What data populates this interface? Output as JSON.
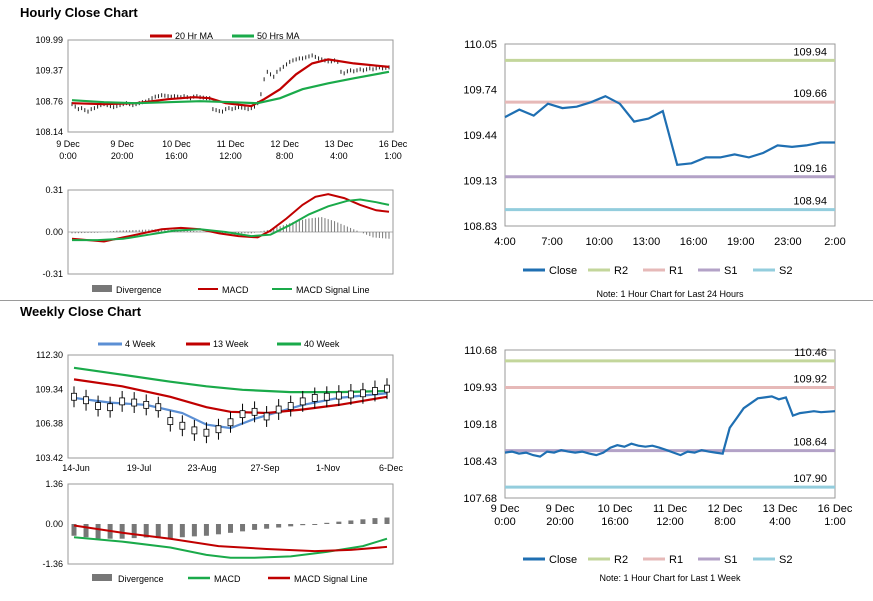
{
  "sections": {
    "hourly_title": "Hourly Close Chart",
    "weekly_title": "Weekly Close Chart"
  },
  "colors": {
    "ma20": "#c00000",
    "ma50": "#1aaa4a",
    "week4": "#5b8fd4",
    "week13": "#c00000",
    "week40": "#1aaa4a",
    "close": "#1f6fb2",
    "r2": "#c3d69b",
    "r1": "#e6b9b8",
    "s1": "#b3a2c7",
    "s2": "#93cddd",
    "divergence": "#777777",
    "candle": "#000000"
  },
  "chart_data": [
    {
      "id": "hourly_price",
      "type": "line",
      "title": "",
      "ylim": [
        108.14,
        109.99
      ],
      "yticks": [
        "109.99",
        "109.37",
        "108.76",
        "108.14"
      ],
      "xticks": [
        [
          "9 Dec",
          "0:00"
        ],
        [
          "9 Dec",
          "20:00"
        ],
        [
          "10 Dec",
          "16:00"
        ],
        [
          "11 Dec",
          "12:00"
        ],
        [
          "12 Dec",
          "8:00"
        ],
        [
          "13 Dec",
          "4:00"
        ],
        [
          "16 Dec",
          "1:00"
        ]
      ],
      "legend": [
        "20 Hr MA",
        "50 Hrs MA"
      ],
      "n": 100,
      "close": [
        108.7,
        108.65,
        108.6,
        108.62,
        108.58,
        108.55,
        108.6,
        108.62,
        108.65,
        108.68,
        108.7,
        108.68,
        108.66,
        108.64,
        108.66,
        108.68,
        108.7,
        108.72,
        108.7,
        108.68,
        108.7,
        108.72,
        108.74,
        108.75,
        108.78,
        108.82,
        108.85,
        108.86,
        108.88,
        108.87,
        108.86,
        108.85,
        108.86,
        108.85,
        108.84,
        108.86,
        108.84,
        108.82,
        108.85,
        108.86,
        108.84,
        108.83,
        108.82,
        108.82,
        108.6,
        108.58,
        108.56,
        108.55,
        108.6,
        108.62,
        108.6,
        108.62,
        108.64,
        108.63,
        108.62,
        108.6,
        108.62,
        108.65,
        108.72,
        108.9,
        109.2,
        109.35,
        109.3,
        109.25,
        109.35,
        109.4,
        109.45,
        109.5,
        109.55,
        109.58,
        109.6,
        109.62,
        109.62,
        109.64,
        109.66,
        109.68,
        109.65,
        109.62,
        109.6,
        109.58,
        109.56,
        109.56,
        109.58,
        109.55,
        109.35,
        109.32,
        109.36,
        109.38,
        109.36,
        109.38,
        109.4,
        109.38,
        109.4,
        109.42,
        109.4,
        109.42,
        109.44,
        109.42,
        109.43,
        109.44
      ],
      "series": [
        {
          "name": "20 Hr MA",
          "color_key": "ma20",
          "values": [
            [
              0,
              108.72
            ],
            [
              10,
              108.7
            ],
            [
              20,
              108.72
            ],
            [
              30,
              108.8
            ],
            [
              38,
              108.84
            ],
            [
              43,
              108.82
            ],
            [
              48,
              108.72
            ],
            [
              56,
              108.66
            ],
            [
              60,
              108.8
            ],
            [
              65,
              109.0
            ],
            [
              70,
              109.3
            ],
            [
              75,
              109.52
            ],
            [
              80,
              109.6
            ],
            [
              88,
              109.52
            ],
            [
              99,
              109.45
            ]
          ]
        },
        {
          "name": "50 Hrs MA",
          "color_key": "ma50",
          "values": [
            [
              0,
              108.78
            ],
            [
              10,
              108.74
            ],
            [
              20,
              108.72
            ],
            [
              30,
              108.74
            ],
            [
              40,
              108.76
            ],
            [
              50,
              108.74
            ],
            [
              58,
              108.72
            ],
            [
              65,
              108.82
            ],
            [
              72,
              109.0
            ],
            [
              80,
              109.12
            ],
            [
              88,
              109.22
            ],
            [
              99,
              109.35
            ]
          ]
        }
      ]
    },
    {
      "id": "hourly_macd",
      "type": "line",
      "ylim": [
        -0.31,
        0.31
      ],
      "yticks": [
        "0.31",
        "0.00",
        "-0.31"
      ],
      "legend": [
        "Divergence",
        "MACD",
        "MACD Signal Line"
      ],
      "n": 100,
      "series": [
        {
          "name": "MACD",
          "color_key": "ma20",
          "values": [
            [
              0,
              -0.05
            ],
            [
              5,
              -0.06
            ],
            [
              10,
              -0.07
            ],
            [
              16,
              -0.04
            ],
            [
              22,
              -0.01
            ],
            [
              28,
              0.02
            ],
            [
              34,
              0.03
            ],
            [
              40,
              0.02
            ],
            [
              46,
              -0.01
            ],
            [
              52,
              -0.03
            ],
            [
              58,
              -0.04
            ],
            [
              62,
              0.01
            ],
            [
              67,
              0.1
            ],
            [
              72,
              0.2
            ],
            [
              76,
              0.26
            ],
            [
              80,
              0.28
            ],
            [
              85,
              0.25
            ],
            [
              90,
              0.2
            ],
            [
              95,
              0.16
            ],
            [
              99,
              0.15
            ]
          ]
        },
        {
          "name": "MACD Signal Line",
          "color_key": "ma50",
          "values": [
            [
              0,
              -0.06
            ],
            [
              8,
              -0.06
            ],
            [
              16,
              -0.05
            ],
            [
              24,
              -0.02
            ],
            [
              32,
              0.01
            ],
            [
              40,
              0.02
            ],
            [
              48,
              0.0
            ],
            [
              56,
              -0.03
            ],
            [
              62,
              -0.02
            ],
            [
              68,
              0.05
            ],
            [
              74,
              0.13
            ],
            [
              80,
              0.19
            ],
            [
              86,
              0.23
            ],
            [
              90,
              0.24
            ],
            [
              95,
              0.22
            ],
            [
              99,
              0.2
            ]
          ]
        }
      ],
      "divergence": [
        [
          0,
          -0.01
        ],
        [
          8,
          -0.005
        ],
        [
          14,
          0.01
        ],
        [
          20,
          0.015
        ],
        [
          26,
          0.02
        ],
        [
          32,
          0.015
        ],
        [
          40,
          0.005
        ],
        [
          48,
          -0.01
        ],
        [
          56,
          -0.01
        ],
        [
          62,
          0.02
        ],
        [
          66,
          0.05
        ],
        [
          70,
          0.08
        ],
        [
          74,
          0.1
        ],
        [
          78,
          0.11
        ],
        [
          82,
          0.08
        ],
        [
          86,
          0.04
        ],
        [
          90,
          0.0
        ],
        [
          94,
          -0.04
        ],
        [
          99,
          -0.05
        ]
      ]
    },
    {
      "id": "pivot_hourly",
      "type": "line",
      "ylim": [
        108.83,
        110.05
      ],
      "yticks": [
        "110.05",
        "109.74",
        "109.44",
        "109.13",
        "108.83"
      ],
      "xticks": [
        "4:00",
        "7:00",
        "10:00",
        "13:00",
        "16:00",
        "19:00",
        "23:00",
        "2:00"
      ],
      "levels": [
        {
          "name": "R2",
          "value": 109.94,
          "label": "109.94",
          "color_key": "r2"
        },
        {
          "name": "R1",
          "value": 109.66,
          "label": "109.66",
          "color_key": "r1"
        },
        {
          "name": "S1",
          "value": 109.16,
          "label": "109.16",
          "color_key": "s1"
        },
        {
          "name": "S2",
          "value": 108.94,
          "label": "108.94",
          "color_key": "s2"
        }
      ],
      "close": [
        109.56,
        109.61,
        109.57,
        109.65,
        109.62,
        109.63,
        109.66,
        109.7,
        109.65,
        109.53,
        109.55,
        109.6,
        109.24,
        109.25,
        109.29,
        109.29,
        109.31,
        109.29,
        109.32,
        109.37,
        109.36,
        109.37,
        109.39,
        109.39
      ],
      "legend": [
        "Close",
        "R2",
        "R1",
        "S1",
        "S2"
      ],
      "note": "Note: 1 Hour Chart for Last 24 Hours"
    },
    {
      "id": "weekly_price",
      "type": "line",
      "ylim": [
        103.42,
        112.3
      ],
      "yticks": [
        "112.30",
        "109.34",
        "106.38",
        "103.42"
      ],
      "xticks": [
        "14-Jun",
        "19-Jul",
        "23-Aug",
        "27-Sep",
        "1-Nov",
        "6-Dec"
      ],
      "legend": [
        "4 Week",
        "13 Week",
        "40 Week"
      ],
      "n": 27,
      "close": [
        108.7,
        108.4,
        107.9,
        107.8,
        108.3,
        108.2,
        108.0,
        107.8,
        106.6,
        106.2,
        105.8,
        105.6,
        105.9,
        106.5,
        107.2,
        107.4,
        107.0,
        107.6,
        107.9,
        108.3,
        108.6,
        108.7,
        108.8,
        108.9,
        109.0,
        109.2,
        109.4
      ],
      "series": [
        {
          "name": "4 Week",
          "color_key": "week4",
          "values": [
            [
              0,
              108.6
            ],
            [
              3,
              108.2
            ],
            [
              6,
              108.0
            ],
            [
              9,
              107.3
            ],
            [
              11,
              106.3
            ],
            [
              13,
              106.0
            ],
            [
              15,
              106.8
            ],
            [
              17,
              107.4
            ],
            [
              19,
              108.0
            ],
            [
              22,
              108.6
            ],
            [
              26,
              109.0
            ]
          ]
        },
        {
          "name": "13 Week",
          "color_key": "week13",
          "values": [
            [
              0,
              110.2
            ],
            [
              4,
              109.6
            ],
            [
              8,
              108.7
            ],
            [
              11,
              107.8
            ],
            [
              13,
              107.4
            ],
            [
              16,
              107.3
            ],
            [
              19,
              107.6
            ],
            [
              22,
              108.0
            ],
            [
              26,
              108.7
            ]
          ]
        },
        {
          "name": "40 Week",
          "color_key": "week40",
          "values": [
            [
              0,
              111.2
            ],
            [
              4,
              110.6
            ],
            [
              8,
              110.0
            ],
            [
              11,
              109.6
            ],
            [
              14,
              109.3
            ],
            [
              18,
              109.1
            ],
            [
              22,
              109.1
            ],
            [
              26,
              109.2
            ]
          ]
        }
      ]
    },
    {
      "id": "weekly_macd",
      "type": "line",
      "ylim": [
        -1.36,
        1.36
      ],
      "yticks": [
        "1.36",
        "0.00",
        "-1.36"
      ],
      "legend": [
        "Divergence",
        "MACD",
        "MACD Signal Line"
      ],
      "n": 27,
      "series": [
        {
          "name": "MACD",
          "color_key": "week40",
          "values": [
            [
              0,
              -0.45
            ],
            [
              4,
              -0.6
            ],
            [
              8,
              -0.8
            ],
            [
              11,
              -1.05
            ],
            [
              13,
              -1.15
            ],
            [
              15,
              -1.15
            ],
            [
              18,
              -1.1
            ],
            [
              21,
              -0.95
            ],
            [
              24,
              -0.75
            ],
            [
              26,
              -0.5
            ]
          ]
        },
        {
          "name": "MACD Signal Line",
          "color_key": "week13",
          "values": [
            [
              0,
              -0.05
            ],
            [
              4,
              -0.3
            ],
            [
              8,
              -0.5
            ],
            [
              12,
              -0.75
            ],
            [
              16,
              -0.85
            ],
            [
              20,
              -0.92
            ],
            [
              23,
              -0.88
            ],
            [
              26,
              -0.78
            ]
          ]
        }
      ],
      "divergence": [
        -0.4,
        -0.45,
        -0.5,
        -0.5,
        -0.5,
        -0.48,
        -0.46,
        -0.48,
        -0.5,
        -0.45,
        -0.42,
        -0.4,
        -0.35,
        -0.3,
        -0.25,
        -0.2,
        -0.16,
        -0.12,
        -0.08,
        -0.04,
        0.0,
        0.04,
        0.08,
        0.12,
        0.16,
        0.2,
        0.22
      ]
    },
    {
      "id": "pivot_weekly",
      "type": "line",
      "ylim": [
        107.68,
        110.68
      ],
      "yticks": [
        "110.68",
        "109.93",
        "109.18",
        "108.43",
        "107.68"
      ],
      "xticks": [
        [
          "9 Dec",
          "0:00"
        ],
        [
          "9 Dec",
          "20:00"
        ],
        [
          "10 Dec",
          "16:00"
        ],
        [
          "11 Dec",
          "12:00"
        ],
        [
          "12 Dec",
          "8:00"
        ],
        [
          "13 Dec",
          "4:00"
        ],
        [
          "16 Dec",
          "1:00"
        ]
      ],
      "levels": [
        {
          "name": "R2",
          "value": 110.46,
          "label": "110.46",
          "color_key": "r2"
        },
        {
          "name": "R1",
          "value": 109.92,
          "label": "109.92",
          "color_key": "r1"
        },
        {
          "name": "S1",
          "value": 108.64,
          "label": "108.64",
          "color_key": "s1"
        },
        {
          "name": "S2",
          "value": 107.9,
          "label": "107.90",
          "color_key": "s2"
        }
      ],
      "close": [
        108.6,
        108.62,
        108.58,
        108.6,
        108.55,
        108.52,
        108.62,
        108.6,
        108.65,
        108.62,
        108.6,
        108.62,
        108.58,
        108.55,
        108.6,
        108.7,
        108.75,
        108.72,
        108.78,
        108.74,
        108.72,
        108.74,
        108.7,
        108.65,
        108.6,
        108.55,
        108.62,
        108.6,
        108.65,
        108.62,
        108.6,
        108.58,
        109.1,
        109.3,
        109.5,
        109.6,
        109.7,
        109.72,
        109.74,
        109.68,
        109.72,
        109.35,
        109.4,
        109.42,
        109.44,
        109.42,
        109.43,
        109.44
      ],
      "legend": [
        "Close",
        "R2",
        "R1",
        "S1",
        "S2"
      ],
      "note": "Note: 1 Hour Chart for Last 1 Week"
    }
  ]
}
